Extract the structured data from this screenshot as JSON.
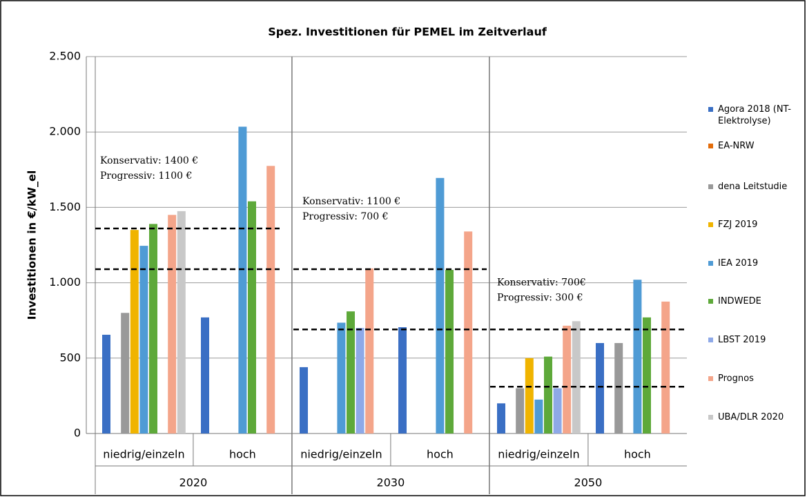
{
  "chart_data": {
    "type": "bar",
    "title": "Spez. Investitionen für PEMEL im Zeitverlauf",
    "y_label": "Investitionen in €/kW_el",
    "categories": [
      "niedrig/einzeln",
      "hoch",
      "niedrig/einzeln",
      "hoch",
      "niedrig/einzeln",
      "hoch"
    ],
    "groups": [
      "2020",
      "2030",
      "2050"
    ],
    "ylim": [
      0,
      2500
    ],
    "yticks": [
      0,
      500,
      {
        "value": 1000,
        "label": "1.000"
      },
      {
        "value": 1500,
        "label": "1.500"
      },
      {
        "value": 2000,
        "label": "2.000"
      },
      {
        "value": 2500,
        "label": "2.500"
      }
    ],
    "grid": true,
    "series": [
      {
        "name": "Agora 2018 (NT-Elektrolyse)",
        "color": "#3a6fc4",
        "values": [
          655,
          770,
          440,
          705,
          200,
          600
        ]
      },
      {
        "name": "EA-NRW",
        "color": "#e36c0a",
        "values": [
          null,
          null,
          null,
          null,
          null,
          null
        ]
      },
      {
        "name": "dena Leitstudie",
        "color": "#999999",
        "values": [
          800,
          null,
          null,
          null,
          300,
          600
        ]
      },
      {
        "name": "FZJ 2019",
        "color": "#f0b400",
        "values": [
          1350,
          null,
          null,
          null,
          500,
          null
        ]
      },
      {
        "name": "IEA 2019",
        "color": "#4f9bd5",
        "values": [
          1245,
          2035,
          735,
          1695,
          225,
          1020
        ]
      },
      {
        "name": "INDWEDE",
        "color": "#5ea93a",
        "values": [
          1390,
          1540,
          810,
          1085,
          510,
          770
        ]
      },
      {
        "name": "LBST 2019",
        "color": "#8ea9e8",
        "values": [
          null,
          null,
          700,
          null,
          300,
          null
        ]
      },
      {
        "name": "Prognos",
        "color": "#f4a58a",
        "values": [
          1450,
          1775,
          1095,
          1340,
          715,
          875
        ]
      },
      {
        "name": "UBA/DLR 2020",
        "color": "#c8c8c8",
        "values": [
          1475,
          null,
          null,
          null,
          745,
          null
        ]
      }
    ],
    "annotations": [
      {
        "lines": [
          "Konservativ: 1400 €",
          "Progressiv: 1100 €"
        ],
        "ref_values": [
          1360,
          1090
        ]
      },
      {
        "lines": [
          "Konservativ: 1100 €",
          "Progressiv: 700 €"
        ],
        "ref_values": [
          1090,
          690
        ]
      },
      {
        "lines": [
          "Konservativ: 700€",
          "Progressiv: 300 €"
        ],
        "ref_values": [
          690,
          310
        ]
      }
    ]
  }
}
